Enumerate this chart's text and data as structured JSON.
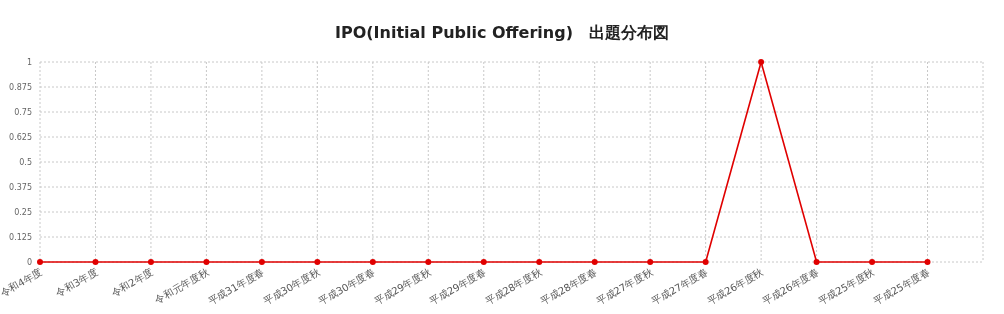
{
  "chart_data": {
    "type": "line",
    "title": "IPO(Initial Public Offering)　出題分布図",
    "categories": [
      "令和4年度",
      "令和3年度",
      "令和2年度",
      "令和元年度秋",
      "平成31年度春",
      "平成30年度秋",
      "平成30年度春",
      "平成29年度秋",
      "平成29年度春",
      "平成28年度秋",
      "平成28年度春",
      "平成27年度秋",
      "平成27年度春",
      "平成26年度秋",
      "平成26年度春",
      "平成25年度秋",
      "平成25年度春"
    ],
    "series": [
      {
        "color": "#e00000",
        "values": [
          0,
          0,
          0,
          0,
          0,
          0,
          0,
          0,
          0,
          0,
          0,
          0,
          0,
          1,
          0,
          0,
          0
        ]
      }
    ],
    "ylim": [
      0,
      1
    ],
    "yticks": [
      0,
      0.125,
      0.25,
      0.375,
      0.5,
      0.625,
      0.75,
      0.875,
      1
    ],
    "grid": true,
    "marker": "circle",
    "line_style": "solid"
  }
}
